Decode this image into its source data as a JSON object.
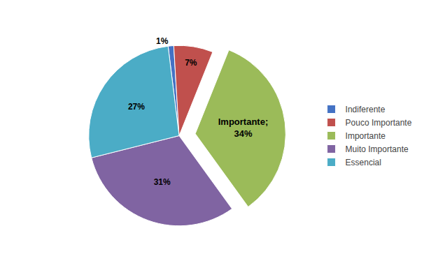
{
  "chart_data": {
    "type": "pie",
    "categories": [
      "Indiferente",
      "Pouco Importante",
      "Importante",
      "Muito Importante",
      "Essencial"
    ],
    "values": [
      1,
      7,
      34,
      31,
      27
    ],
    "value_labels": [
      "1%",
      "7%",
      "Importante;\n34%",
      "31%",
      "27%"
    ],
    "colors": [
      "#4472C4",
      "#C0504D",
      "#9BBB59",
      "#8064A2",
      "#4BACC6"
    ],
    "data_labels": true,
    "legend": "right"
  }
}
